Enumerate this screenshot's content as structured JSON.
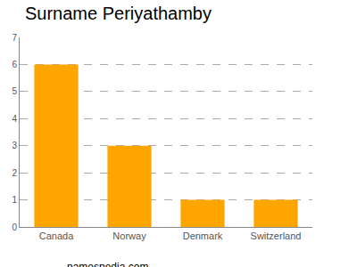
{
  "chart_data": {
    "type": "bar",
    "title": "Surname Periyathamby",
    "categories": [
      "Canada",
      "Norway",
      "Denmark",
      "Switzerland"
    ],
    "values": [
      6,
      3,
      1,
      1
    ],
    "color": "#ffa500",
    "ylim": [
      0,
      7
    ],
    "yticks": [
      0,
      1,
      2,
      3,
      4,
      5,
      6,
      7
    ],
    "grid": true,
    "annotations": [
      "namespedia.com"
    ]
  }
}
